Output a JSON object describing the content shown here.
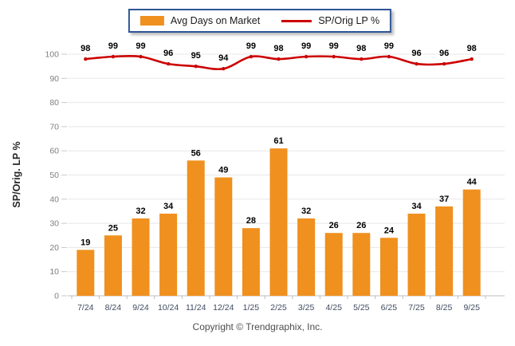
{
  "legend": {
    "items": [
      {
        "label": "Avg Days on Market",
        "swatch": "bar-swatch"
      },
      {
        "label": "SP/Orig LP %",
        "swatch": "line-swatch"
      }
    ]
  },
  "footer": {
    "copyright": "Copyright © Trendgraphix, Inc."
  },
  "colors": {
    "bar": "#F0901E",
    "line": "#CC0000",
    "grid": "#E7E7E7",
    "axis": "#BDBDBD",
    "tick": "#C9C9C9",
    "y_label": "#7F7F7F",
    "x_label": "#3F4A5F",
    "value_label": "#000000",
    "legend_border": "#2E5596"
  },
  "chart_data": {
    "type": "bar",
    "categories": [
      "7/24",
      "8/24",
      "9/24",
      "10/24",
      "11/24",
      "12/24",
      "1/25",
      "2/25",
      "3/25",
      "4/25",
      "5/25",
      "6/25",
      "7/25",
      "8/25",
      "9/25"
    ],
    "series": [
      {
        "name": "Avg Days on Market",
        "type": "bar",
        "values": [
          19,
          25,
          32,
          34,
          56,
          49,
          28,
          61,
          32,
          26,
          26,
          24,
          34,
          37,
          44
        ]
      },
      {
        "name": "SP/Orig LP %",
        "type": "line",
        "values": [
          98,
          99,
          99,
          96,
          95,
          94,
          99,
          98,
          99,
          99,
          98,
          99,
          96,
          96,
          98
        ]
      }
    ],
    "title": "",
    "xlabel": "",
    "ylabel": "SP/Orig. LP %",
    "ylim": [
      0,
      100
    ],
    "y_ticks": [
      0,
      10,
      20,
      30,
      40,
      50,
      60,
      70,
      80,
      90,
      100
    ],
    "grid": "horizontal",
    "legend_position": "top-center",
    "value_labels": "shown-on-bars-and-line"
  }
}
